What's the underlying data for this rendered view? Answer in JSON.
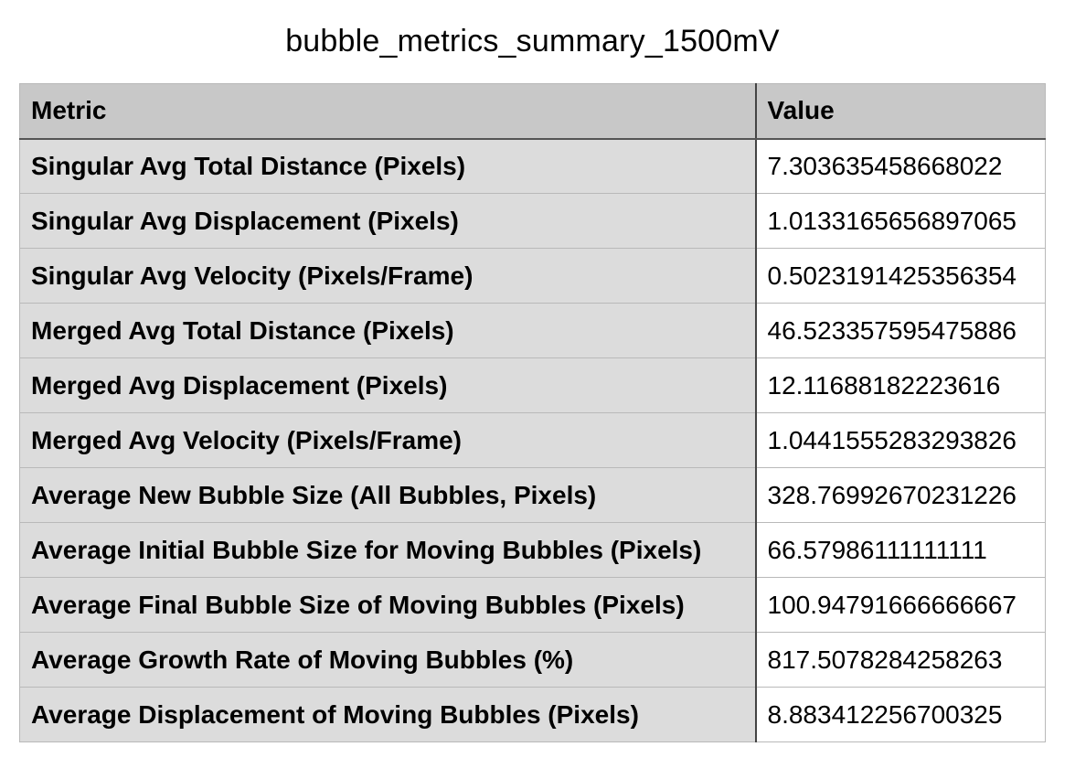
{
  "title": "bubble_metrics_summary_1500mV",
  "table": {
    "columns": [
      "Metric",
      "Value"
    ],
    "rows": [
      {
        "metric": "Singular Avg Total Distance (Pixels)",
        "value": "7.303635458668022"
      },
      {
        "metric": "Singular Avg Displacement (Pixels)",
        "value": "1.0133165656897065"
      },
      {
        "metric": "Singular Avg Velocity (Pixels/Frame)",
        "value": "0.5023191425356354"
      },
      {
        "metric": "Merged Avg Total Distance (Pixels)",
        "value": "46.523357595475886"
      },
      {
        "metric": "Merged Avg Displacement (Pixels)",
        "value": "12.11688182223616"
      },
      {
        "metric": "Merged Avg Velocity (Pixels/Frame)",
        "value": "1.0441555283293826"
      },
      {
        "metric": "Average New Bubble Size (All Bubbles, Pixels)",
        "value": "328.76992670231226"
      },
      {
        "metric": "Average Initial Bubble Size for Moving Bubbles (Pixels)",
        "value": "66.57986111111111"
      },
      {
        "metric": "Average Final Bubble Size of Moving Bubbles (Pixels)",
        "value": "100.94791666666667"
      },
      {
        "metric": "Average Growth Rate of Moving Bubbles (%)",
        "value": "817.5078284258263"
      },
      {
        "metric": "Average Displacement of Moving Bubbles (Pixels)",
        "value": "8.883412256700325"
      }
    ]
  },
  "colors": {
    "header_bg": "#c8c8c8",
    "metric_cell_bg": "#dcdcdc",
    "value_cell_bg": "#ffffff",
    "grid_line": "#b9b9b9",
    "divider_line": "#444444"
  }
}
